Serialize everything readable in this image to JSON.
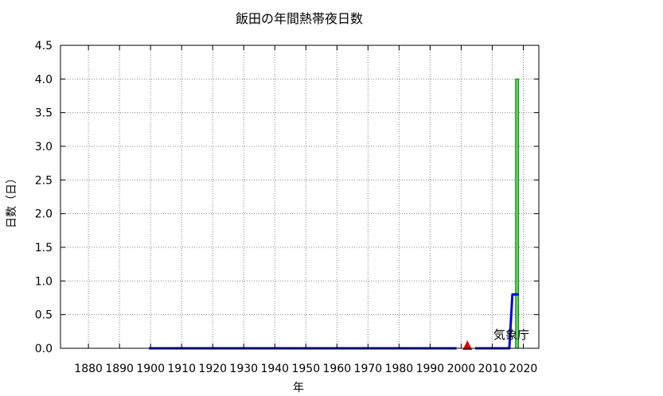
{
  "chart_data": {
    "type": "bar",
    "title": "飯田の年間熱帯夜日数",
    "xlabel": "年",
    "ylabel": "日数（日）",
    "xlim": [
      1871,
      2025
    ],
    "ylim": [
      0,
      4.5
    ],
    "x_ticks": [
      1880,
      1890,
      1900,
      1910,
      1920,
      1930,
      1940,
      1950,
      1960,
      1970,
      1980,
      1990,
      2000,
      2010,
      2020
    ],
    "y_ticks": [
      "0.0",
      "0.5",
      "1.0",
      "1.5",
      "2.0",
      "2.5",
      "3.0",
      "3.5",
      "4.0",
      "4.5"
    ],
    "grid": true,
    "bars": [
      {
        "year": 2018,
        "value": 4
      }
    ],
    "series": [
      {
        "type": "step-line",
        "color": "#0000dd",
        "segments": [
          [
            [
              1899.5,
              0
            ],
            [
              1998.5,
              0
            ]
          ],
          [
            [
              2004.5,
              0
            ],
            [
              2015.5,
              0
            ],
            [
              2016.5,
              0.8
            ],
            [
              2018.5,
              0.8
            ]
          ]
        ]
      }
    ],
    "markers": [
      {
        "shape": "triangle",
        "year": 2002,
        "value": 0,
        "color": "#dd0000"
      }
    ],
    "colors": {
      "bar_fill": "#66cc66",
      "bar_stroke": "#008800",
      "grid": "#888888"
    },
    "credit": "気象庁"
  }
}
